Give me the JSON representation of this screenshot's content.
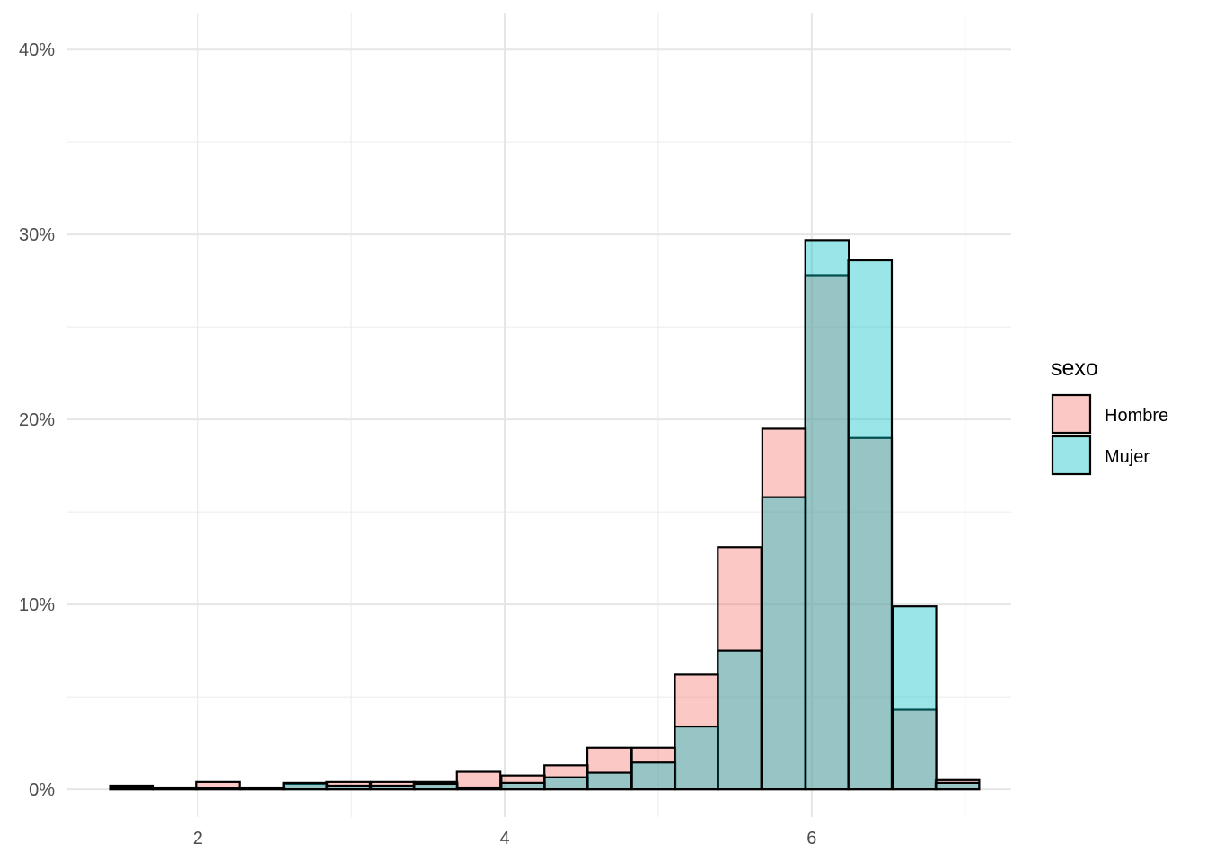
{
  "chart_data": {
    "type": "bar",
    "subtype": "overlaid-histogram",
    "title": "",
    "xlabel": "",
    "ylabel": "",
    "xlim": [
      1.15,
      7.3
    ],
    "ylim": [
      -0.015,
      0.42
    ],
    "x_ticks": [
      {
        "value": 2,
        "label": "2"
      },
      {
        "value": 4,
        "label": "4"
      },
      {
        "value": 6,
        "label": "6"
      }
    ],
    "y_ticks": [
      {
        "value": 0,
        "label": "0%"
      },
      {
        "value": 0.1,
        "label": "10%"
      },
      {
        "value": 0.2,
        "label": "20%"
      },
      {
        "value": 0.3,
        "label": "30%"
      },
      {
        "value": 0.4,
        "label": "40%"
      }
    ],
    "grid": true,
    "legend_position": "right",
    "legend_title": "sexo",
    "bin_width": 0.2833,
    "bin_centers": [
      1.57,
      1.85,
      2.13,
      2.42,
      2.7,
      2.98,
      3.27,
      3.55,
      3.83,
      4.12,
      4.4,
      4.68,
      4.97,
      5.25,
      5.53,
      5.82,
      6.1,
      6.38,
      6.67,
      6.95
    ],
    "series": [
      {
        "name": "Hombre",
        "color": "#F8766D",
        "values": [
          0.002,
          0.001,
          0.004,
          0.001,
          0.003,
          0.004,
          0.004,
          0.004,
          0.0095,
          0.0075,
          0.013,
          0.0225,
          0.0225,
          0.062,
          0.131,
          0.195,
          0.278,
          0.19,
          0.043,
          0.005
        ]
      },
      {
        "name": "Mujer",
        "color": "#00BFC4",
        "values": [
          0.001,
          0.0005,
          0.0005,
          0.0005,
          0.0035,
          0.002,
          0.002,
          0.003,
          0.001,
          0.0035,
          0.0065,
          0.009,
          0.0145,
          0.034,
          0.075,
          0.158,
          0.297,
          0.286,
          0.099,
          0.0035
        ]
      }
    ]
  }
}
